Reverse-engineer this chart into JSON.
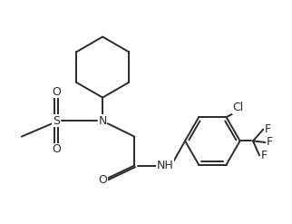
{
  "bg_color": "#ffffff",
  "line_color": "#2b2b2b",
  "line_width": 1.4,
  "figsize": [
    3.22,
    2.47
  ],
  "dpi": 100,
  "xlim": [
    0,
    10
  ],
  "ylim": [
    0,
    7.7
  ]
}
